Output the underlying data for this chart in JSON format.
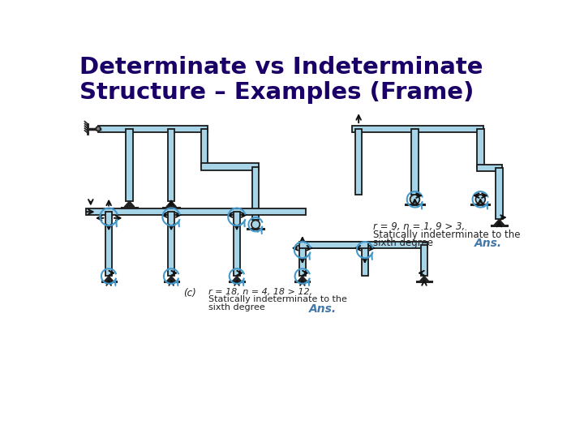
{
  "title_line1": "Determinate vs Indeterminate",
  "title_line2": "Structure – Examples (Frame)",
  "title_color": "#1a0066",
  "title_fontsize": 21,
  "bg_color": "#ffffff",
  "beam_color": "#a8d4e8",
  "beam_edge_color": "#1a1a1a",
  "arrow_color": "#111111",
  "moment_color": "#4499cc",
  "support_color": "#222222",
  "text_color": "#222222",
  "ans_color": "#4477aa",
  "bottom_text": "r = 18, n = 4, 18 > 12,\nStatically indeterminate to the\nsixth degree",
  "bottom_ans": "Ans.",
  "right_text_line1": "r = 9, n = 1, 9 > 3,",
  "right_text_line2": "Statically indeterminate to the",
  "right_text_line3": "sixth degree",
  "right_ans": "Ans.",
  "label_c": "(c)"
}
